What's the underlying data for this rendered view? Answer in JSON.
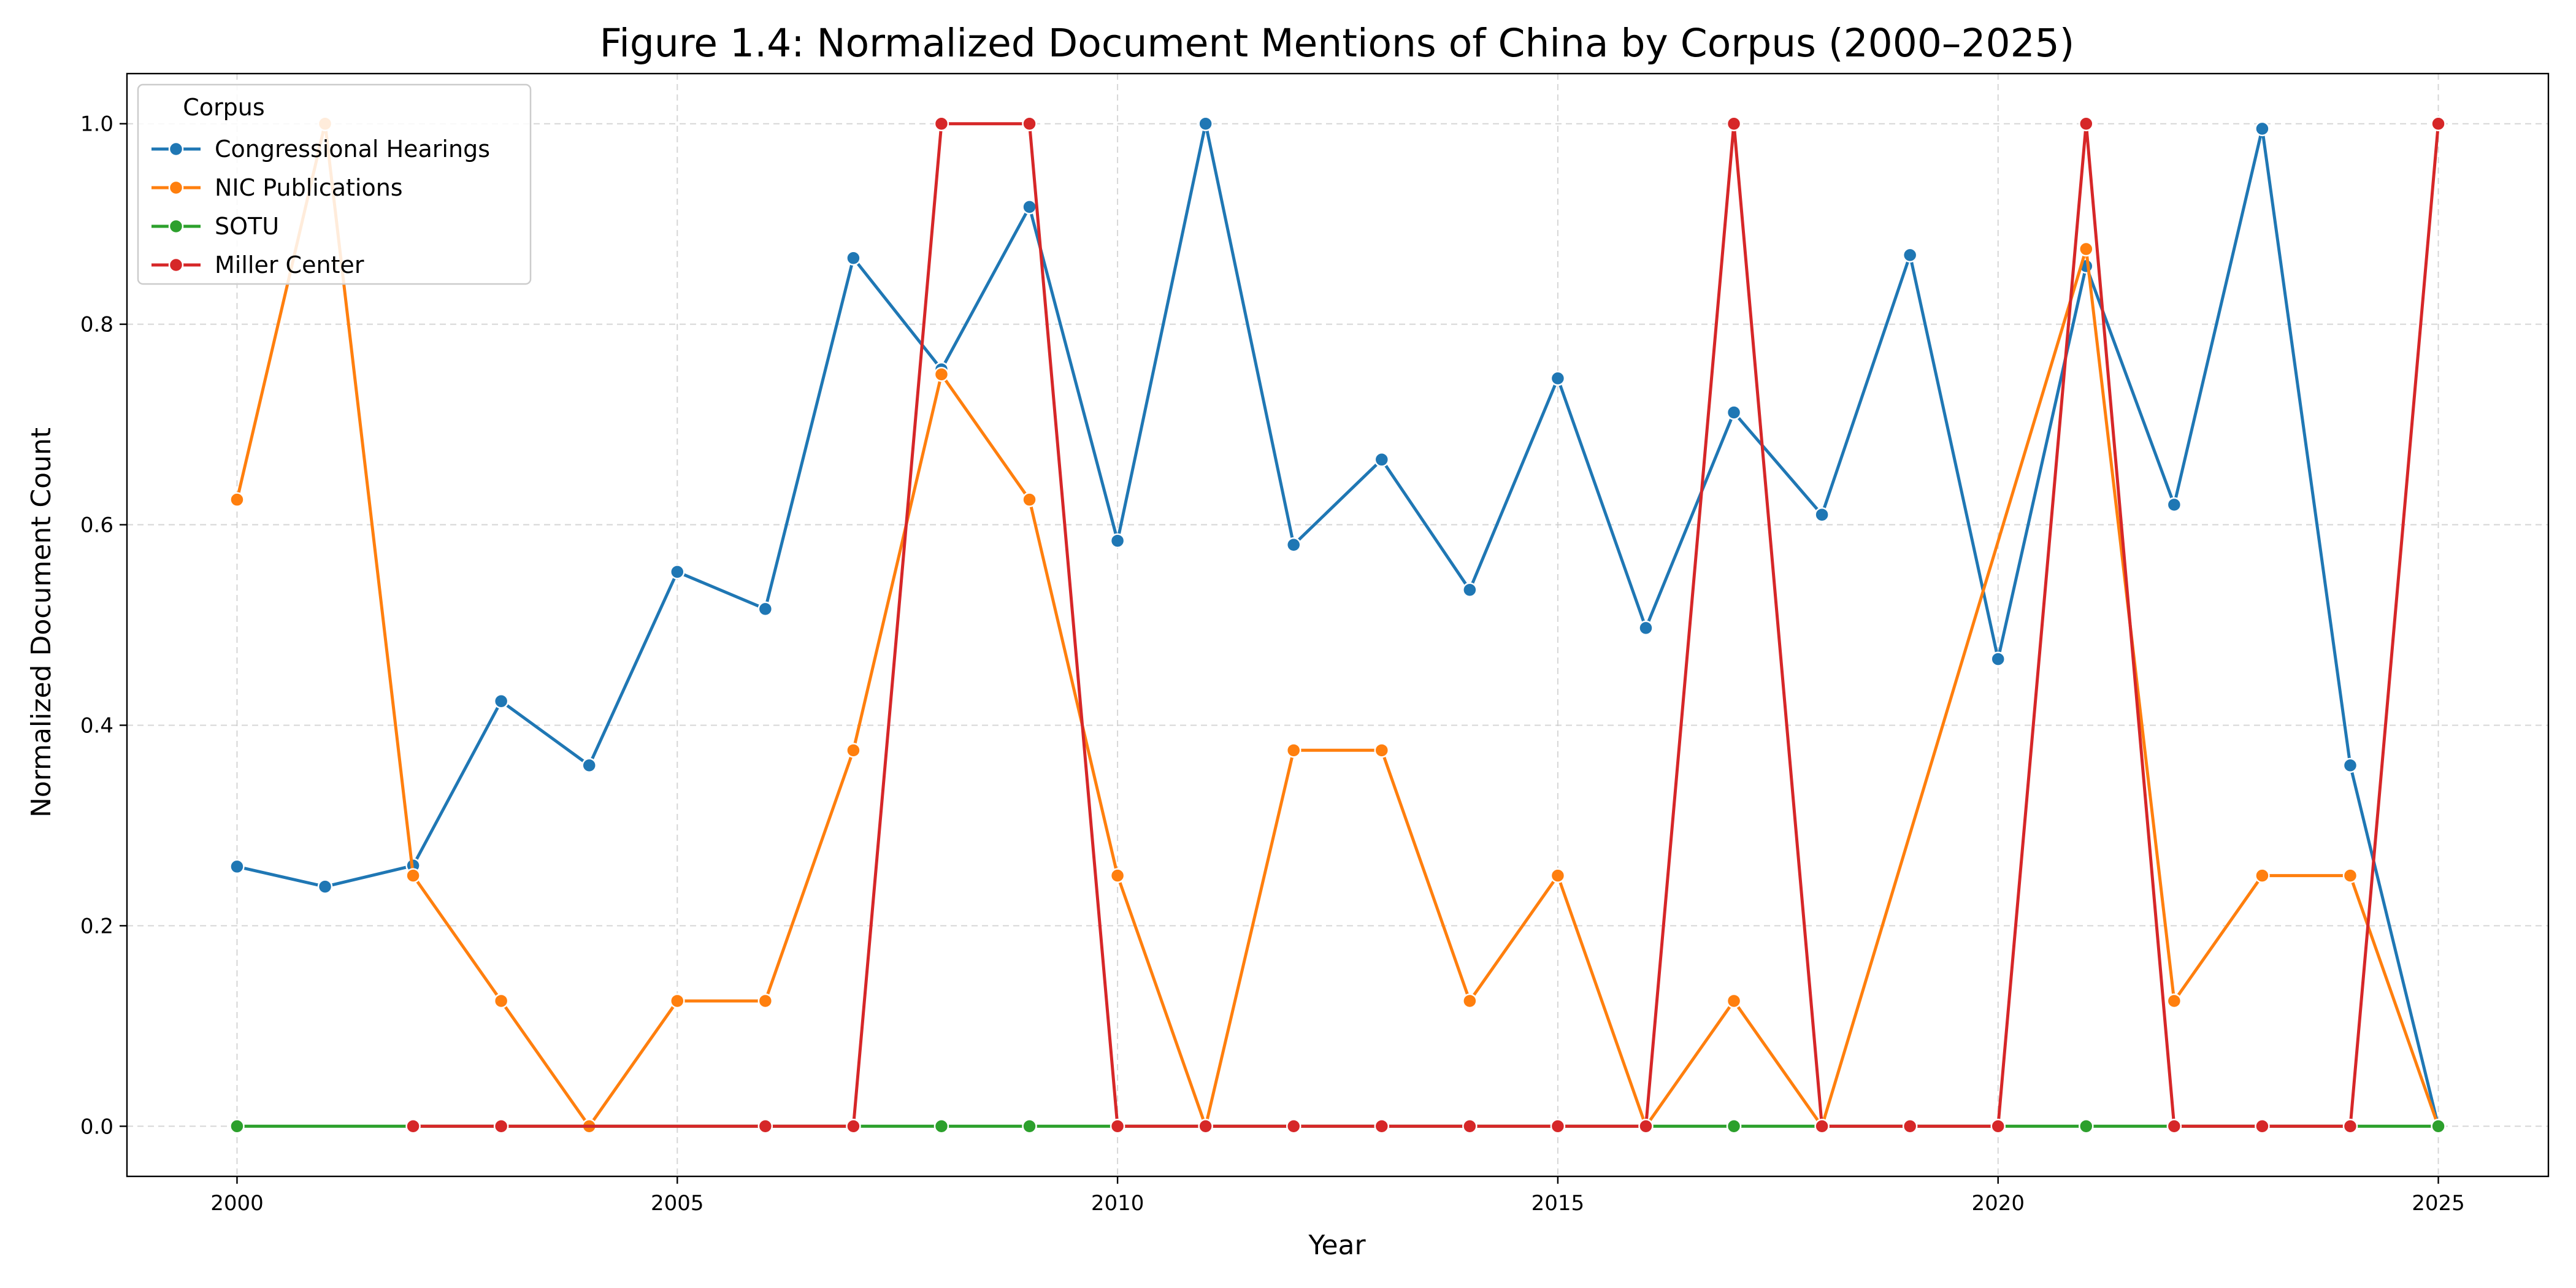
{
  "chart_data": {
    "type": "line",
    "title": "Figure 1.4: Normalized Document Mentions of China by Corpus (2000–2025)",
    "xlabel": "Year",
    "ylabel": "Normalized Document Count",
    "xlim": [
      1998.75,
      2026.25
    ],
    "ylim": [
      -0.05,
      1.05
    ],
    "x_ticks": [
      2000,
      2005,
      2010,
      2015,
      2020,
      2025
    ],
    "y_ticks": [
      0.0,
      0.2,
      0.4,
      0.6,
      0.8,
      1.0
    ],
    "x_tick_labels": [
      "2000",
      "2005",
      "2010",
      "2015",
      "2020",
      "2025"
    ],
    "y_tick_labels": [
      "0.0",
      "0.2",
      "0.4",
      "0.6",
      "0.8",
      "1.0"
    ],
    "grid": true,
    "legend": {
      "title": "Corpus",
      "placement": "top-left"
    },
    "x": [
      2000,
      2001,
      2002,
      2003,
      2004,
      2005,
      2006,
      2007,
      2008,
      2009,
      2010,
      2011,
      2012,
      2013,
      2014,
      2015,
      2016,
      2017,
      2018,
      2019,
      2020,
      2021,
      2022,
      2023,
      2024,
      2025
    ],
    "series": [
      {
        "name": "Congressional Hearings",
        "color": "#1f77b4",
        "values": [
          0.259,
          0.239,
          0.26,
          0.424,
          0.36,
          0.553,
          0.516,
          0.866,
          0.755,
          0.917,
          0.584,
          1.0,
          0.58,
          0.665,
          0.535,
          0.746,
          0.497,
          0.712,
          0.61,
          0.869,
          0.466,
          0.858,
          0.62,
          0.995,
          0.36,
          0.0
        ]
      },
      {
        "name": "NIC Publications",
        "color": "#ff7f0e",
        "values": [
          0.625,
          1.0,
          0.25,
          0.125,
          0.0,
          0.125,
          0.125,
          0.375,
          0.75,
          0.625,
          0.25,
          0.0,
          0.375,
          0.375,
          0.125,
          0.25,
          0.0,
          0.125,
          0.0,
          null,
          null,
          0.875,
          0.125,
          0.25,
          0.25,
          0.0
        ]
      },
      {
        "name": "SOTU",
        "color": "#2ca02c",
        "values": [
          0.0,
          null,
          null,
          null,
          null,
          null,
          null,
          null,
          0.0,
          0.0,
          null,
          null,
          null,
          null,
          null,
          null,
          null,
          0.0,
          null,
          null,
          null,
          0.0,
          null,
          null,
          null,
          0.0
        ]
      },
      {
        "name": "Miller Center",
        "color": "#d62728",
        "values": [
          null,
          null,
          0.0,
          0.0,
          null,
          null,
          0.0,
          0.0,
          1.0,
          1.0,
          0.0,
          0.0,
          0.0,
          0.0,
          0.0,
          0.0,
          0.0,
          1.0,
          0.0,
          0.0,
          0.0,
          1.0,
          0.0,
          0.0,
          0.0,
          1.0
        ]
      }
    ]
  }
}
